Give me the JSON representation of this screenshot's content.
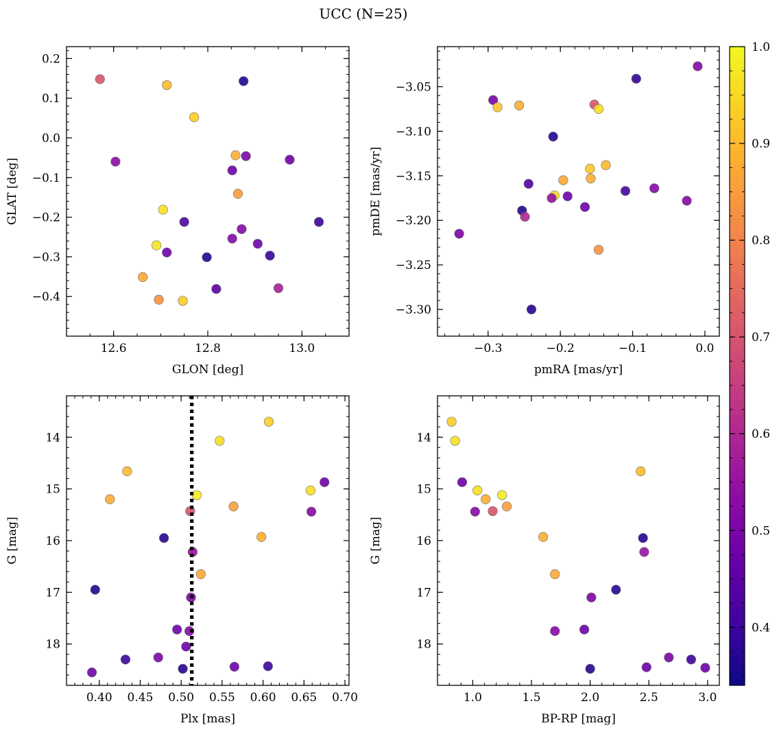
{
  "figure": {
    "title": "UCC (N=25)"
  },
  "colorbar": {
    "colormap": "plasma",
    "vmin": 0.34,
    "vmax": 1.0,
    "ticks": [
      "0.4",
      "0.5",
      "0.6",
      "0.7",
      "0.8",
      "0.9",
      "1.0"
    ],
    "colors": [
      "#0d0887",
      "#41049d",
      "#6a00a8",
      "#8f0da4",
      "#b12a90",
      "#cc4778",
      "#e16462",
      "#f2844b",
      "#fca636",
      "#fcce25",
      "#f0f921"
    ]
  },
  "chart_data": [
    {
      "type": "scatter",
      "id": "glon-glat",
      "xlabel": "GLON [deg]",
      "ylabel": "GLAT [deg]",
      "xlim": [
        12.5,
        13.1
      ],
      "ylim": [
        -0.5,
        0.23
      ],
      "y_inverted": false,
      "xticks": [
        12.6,
        12.8,
        13.0
      ],
      "xtick_labels": [
        "12.6",
        "12.8",
        "13.0"
      ],
      "yticks": [
        -0.4,
        -0.3,
        -0.2,
        -0.1,
        0.0,
        0.1,
        0.2
      ],
      "ytick_labels": [
        "−0.4",
        "−0.3",
        "−0.2",
        "−0.1",
        "0.0",
        "0.1",
        "0.2"
      ],
      "grid": false,
      "x": [
        12.571,
        12.713,
        12.876,
        12.771,
        12.604,
        12.859,
        12.881,
        12.974,
        12.852,
        12.864,
        12.705,
        12.75,
        13.036,
        12.872,
        12.691,
        12.852,
        12.906,
        12.713,
        12.798,
        12.932,
        12.662,
        12.696,
        12.747,
        12.818,
        12.95
      ],
      "y": [
        0.148,
        0.133,
        0.143,
        0.052,
        -0.06,
        -0.044,
        -0.046,
        -0.055,
        -0.082,
        -0.141,
        -0.181,
        -0.212,
        -0.212,
        -0.23,
        -0.271,
        -0.254,
        -0.267,
        -0.289,
        -0.301,
        -0.297,
        -0.351,
        -0.408,
        -0.411,
        -0.381,
        -0.379
      ],
      "color": [
        0.7,
        0.9,
        0.36,
        0.93,
        0.53,
        0.88,
        0.5,
        0.48,
        0.48,
        0.85,
        0.96,
        0.43,
        0.4,
        0.52,
        0.97,
        0.52,
        0.48,
        0.48,
        0.37,
        0.4,
        0.87,
        0.83,
        0.93,
        0.45,
        0.58
      ]
    },
    {
      "type": "scatter",
      "id": "pmra-pmde",
      "xlabel": "pmRA [mas/yr]",
      "ylabel": "pmDE [mas/yr]",
      "xlim": [
        -0.37,
        0.02
      ],
      "ylim": [
        -3.33,
        -3.005
      ],
      "y_inverted": false,
      "xticks": [
        -0.3,
        -0.2,
        -0.1,
        0.0
      ],
      "xtick_labels": [
        "−0.3",
        "−0.2",
        "−0.1",
        "0.0"
      ],
      "yticks": [
        -3.3,
        -3.25,
        -3.2,
        -3.15,
        -3.1,
        -3.05
      ],
      "ytick_labels": [
        "−3.30",
        "−3.25",
        "−3.20",
        "−3.15",
        "−3.10",
        "−3.05"
      ],
      "grid": false,
      "x": [
        -0.01,
        -0.095,
        -0.293,
        -0.287,
        -0.257,
        -0.153,
        -0.147,
        -0.21,
        -0.137,
        -0.159,
        -0.158,
        -0.196,
        -0.208,
        -0.212,
        -0.244,
        -0.11,
        -0.07,
        -0.19,
        -0.025,
        -0.166,
        -0.253,
        -0.249,
        -0.34,
        -0.147,
        -0.24
      ],
      "y": [
        -3.027,
        -3.041,
        -3.065,
        -3.073,
        -3.071,
        -3.07,
        -3.075,
        -3.106,
        -3.138,
        -3.142,
        -3.153,
        -3.155,
        -3.172,
        -3.175,
        -3.159,
        -3.167,
        -3.164,
        -3.173,
        -3.178,
        -3.185,
        -3.189,
        -3.196,
        -3.215,
        -3.233,
        -3.3
      ],
      "color": [
        0.52,
        0.38,
        0.5,
        0.92,
        0.88,
        0.7,
        0.96,
        0.37,
        0.9,
        0.92,
        0.88,
        0.87,
        0.95,
        0.55,
        0.43,
        0.42,
        0.52,
        0.48,
        0.52,
        0.48,
        0.37,
        0.6,
        0.5,
        0.83,
        0.37
      ]
    },
    {
      "type": "scatter",
      "id": "plx-g",
      "xlabel": "Plx [mas]",
      "ylabel": "G [mag]",
      "xlim": [
        0.36,
        0.705
      ],
      "ylim": [
        18.8,
        13.2
      ],
      "y_inverted": true,
      "xticks": [
        0.4,
        0.45,
        0.5,
        0.55,
        0.6,
        0.65,
        0.7
      ],
      "xtick_labels": [
        "0.40",
        "0.45",
        "0.50",
        "0.55",
        "0.60",
        "0.65",
        "0.70"
      ],
      "yticks": [
        14,
        15,
        16,
        17,
        18
      ],
      "ytick_labels": [
        "14",
        "15",
        "16",
        "17",
        "18"
      ],
      "grid": false,
      "vline": {
        "x": 0.513,
        "style": "dotted",
        "color": "#000000"
      },
      "x": [
        0.607,
        0.547,
        0.434,
        0.675,
        0.658,
        0.413,
        0.519,
        0.564,
        0.659,
        0.511,
        0.598,
        0.479,
        0.514,
        0.524,
        0.395,
        0.512,
        0.495,
        0.51,
        0.506,
        0.472,
        0.432,
        0.391,
        0.502,
        0.565,
        0.606
      ],
      "y": [
        13.7,
        14.07,
        14.66,
        14.87,
        15.03,
        15.2,
        15.12,
        15.34,
        15.44,
        15.43,
        15.93,
        15.95,
        16.22,
        16.65,
        16.95,
        17.1,
        17.72,
        17.75,
        18.05,
        18.26,
        18.3,
        18.55,
        18.48,
        18.44,
        18.43
      ],
      "color": [
        0.93,
        0.96,
        0.9,
        0.48,
        0.96,
        0.88,
        0.98,
        0.85,
        0.52,
        0.7,
        0.88,
        0.37,
        0.55,
        0.87,
        0.37,
        0.5,
        0.48,
        0.52,
        0.48,
        0.5,
        0.4,
        0.48,
        0.37,
        0.48,
        0.4
      ]
    },
    {
      "type": "scatter",
      "id": "bprp-g",
      "xlabel": "BP-RP [mag]",
      "ylabel": "G [mag]",
      "xlim": [
        0.7,
        3.1
      ],
      "ylim": [
        18.8,
        13.2
      ],
      "y_inverted": true,
      "xticks": [
        1.0,
        1.5,
        2.0,
        2.5,
        3.0
      ],
      "xtick_labels": [
        "1.0",
        "1.5",
        "2.0",
        "2.5",
        "3.0"
      ],
      "yticks": [
        14,
        15,
        16,
        17,
        18
      ],
      "ytick_labels": [
        "14",
        "15",
        "16",
        "17",
        "18"
      ],
      "grid": false,
      "x": [
        0.82,
        0.85,
        2.43,
        0.91,
        1.04,
        1.11,
        1.25,
        1.29,
        1.02,
        1.17,
        1.6,
        2.45,
        2.46,
        1.7,
        2.22,
        2.01,
        1.95,
        1.7,
        2.67,
        2.86,
        2.98,
        2.48,
        2.0
      ],
      "y": [
        13.7,
        14.07,
        14.66,
        14.87,
        15.03,
        15.2,
        15.12,
        15.34,
        15.44,
        15.43,
        15.93,
        15.95,
        16.22,
        16.65,
        16.95,
        17.1,
        17.72,
        17.75,
        18.26,
        18.3,
        18.46,
        18.45,
        18.48
      ],
      "color": [
        0.93,
        0.96,
        0.9,
        0.48,
        0.96,
        0.88,
        0.98,
        0.85,
        0.52,
        0.7,
        0.88,
        0.37,
        0.55,
        0.87,
        0.37,
        0.5,
        0.48,
        0.52,
        0.5,
        0.4,
        0.48,
        0.48,
        0.37
      ]
    }
  ]
}
